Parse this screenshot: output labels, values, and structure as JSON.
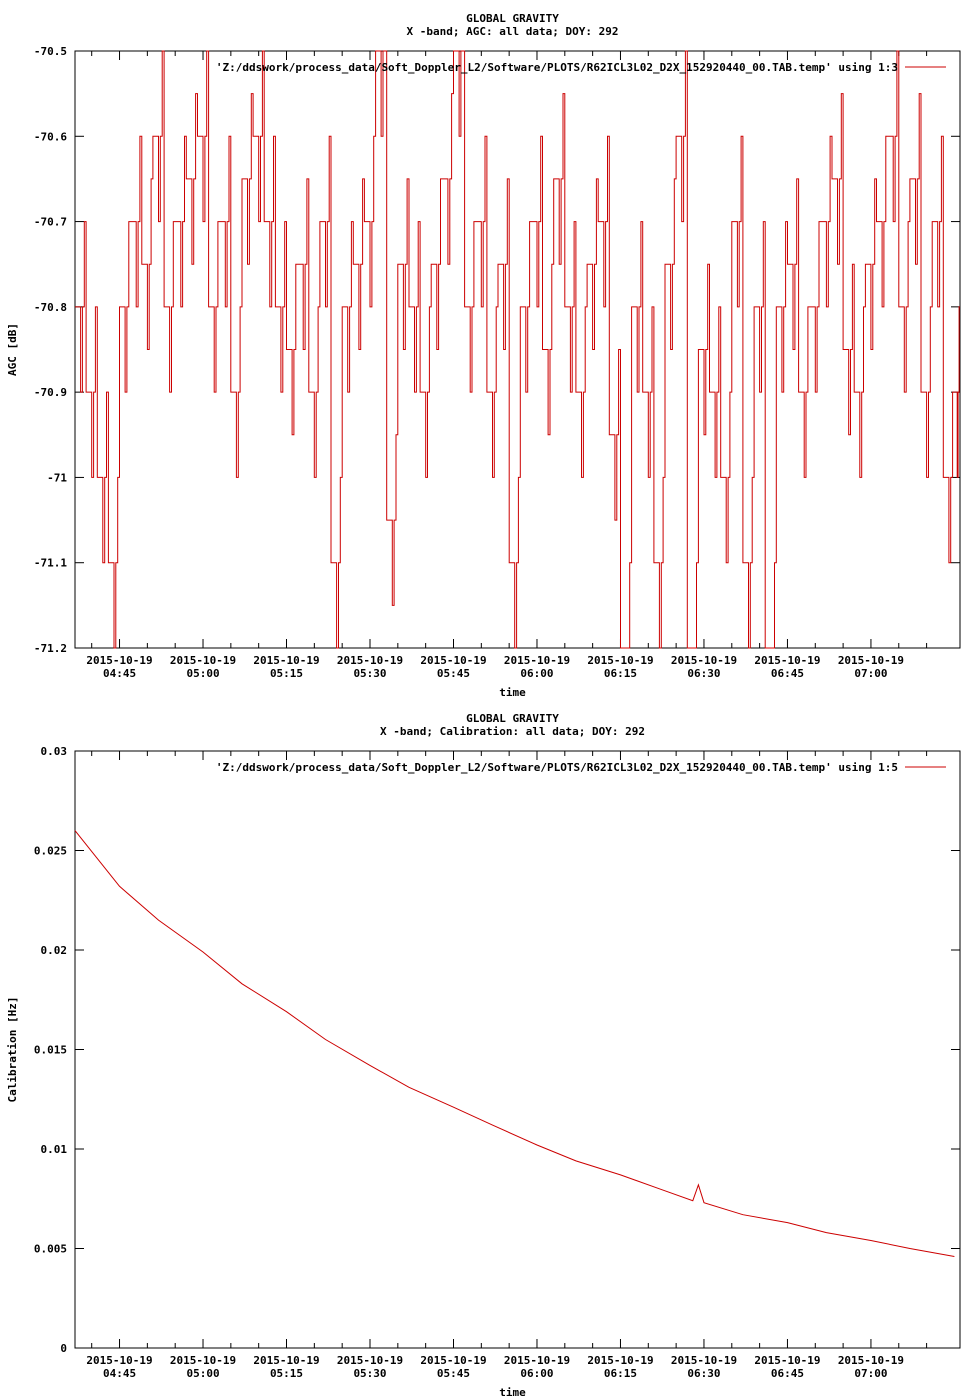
{
  "chart_data": [
    {
      "type": "line",
      "title": "GLOBAL GRAVITY",
      "subtitle": "X -band; AGC: all data; DOY: 292",
      "xlabel": "time",
      "ylabel": "AGC [dB]",
      "ylim": [
        -71.2,
        -70.5
      ],
      "yticks": [
        -70.5,
        -70.6,
        -70.7,
        -70.8,
        -70.9,
        -71,
        -71.1,
        -71.2
      ],
      "ytick_labels": [
        "-70.5",
        "-70.6",
        "-70.7",
        "-70.8",
        "-70.9",
        "-71",
        "-71.1",
        "-71.2"
      ],
      "xlim": [
        "04:37",
        "07:16"
      ],
      "xticks": [
        "04:45",
        "05:00",
        "05:15",
        "05:30",
        "05:45",
        "06:00",
        "06:15",
        "06:30",
        "06:45",
        "07:00"
      ],
      "xtick_date": "2015-10-19",
      "grid": false,
      "legend": "top-right",
      "series": [
        {
          "name": "'Z:/ddswork/process_data/Soft_Doppler_L2/Software/PLOTS/R62ICL3L02_D2X_152920440_00.TAB.temp' using 1:3",
          "color": "#cc0000",
          "x": [
            "04:37",
            "04:39",
            "04:41",
            "04:43",
            "04:45",
            "04:47",
            "04:49",
            "04:51",
            "04:53",
            "04:55",
            "04:57",
            "04:59",
            "05:01",
            "05:03",
            "05:05",
            "05:07",
            "05:09",
            "05:11",
            "05:13",
            "05:15",
            "05:17",
            "05:19",
            "05:21",
            "05:23",
            "05:25",
            "05:27",
            "05:29",
            "05:31",
            "05:33",
            "05:35",
            "05:37",
            "05:39",
            "05:41",
            "05:43",
            "05:45",
            "05:47",
            "05:49",
            "05:51",
            "05:53",
            "05:55",
            "05:57",
            "05:59",
            "06:01",
            "06:03",
            "06:05",
            "06:07",
            "06:09",
            "06:11",
            "06:13",
            "06:15",
            "06:17",
            "06:19",
            "06:21",
            "06:23",
            "06:25",
            "06:27",
            "06:29",
            "06:31",
            "06:33",
            "06:35",
            "06:37",
            "06:39",
            "06:41",
            "06:43",
            "06:45",
            "06:47",
            "06:49",
            "06:51",
            "06:53",
            "06:55",
            "06:57",
            "06:59",
            "07:01",
            "07:03",
            "07:05",
            "07:07",
            "07:09",
            "07:11",
            "07:13",
            "07:15"
          ],
          "values": [
            -70.8,
            -70.9,
            -71.0,
            -71.1,
            -70.8,
            -70.7,
            -70.75,
            -70.6,
            -70.8,
            -70.7,
            -70.65,
            -70.6,
            -70.8,
            -70.7,
            -70.9,
            -70.65,
            -70.6,
            -70.7,
            -70.8,
            -70.85,
            -70.75,
            -70.9,
            -70.7,
            -71.1,
            -70.8,
            -70.75,
            -70.7,
            -70.5,
            -71.05,
            -70.75,
            -70.8,
            -70.9,
            -70.75,
            -70.65,
            -70.5,
            -70.8,
            -70.7,
            -70.9,
            -70.75,
            -71.1,
            -70.8,
            -70.7,
            -70.85,
            -70.65,
            -70.8,
            -70.9,
            -70.75,
            -70.7,
            -70.95,
            -71.2,
            -70.8,
            -70.9,
            -71.1,
            -70.75,
            -70.6,
            -71.2,
            -70.85,
            -70.9,
            -71.0,
            -70.7,
            -71.1,
            -70.8,
            -71.2,
            -70.8,
            -70.75,
            -70.9,
            -70.8,
            -70.7,
            -70.65,
            -70.85,
            -70.9,
            -70.75,
            -70.7,
            -70.6,
            -70.8,
            -70.65,
            -70.9,
            -70.7,
            -71.0,
            -70.9
          ]
        }
      ]
    },
    {
      "type": "line",
      "title": "GLOBAL GRAVITY",
      "subtitle": "X -band; Calibration: all data; DOY: 292",
      "xlabel": "time",
      "ylabel": "Calibration [Hz]",
      "ylim": [
        0,
        0.03
      ],
      "yticks": [
        0.03,
        0.025,
        0.02,
        0.015,
        0.01,
        0.005,
        0
      ],
      "ytick_labels": [
        "0.03",
        "0.025",
        "0.02",
        "0.015",
        "0.01",
        "0.005",
        "0"
      ],
      "xlim": [
        "04:37",
        "07:16"
      ],
      "xticks": [
        "04:45",
        "05:00",
        "05:15",
        "05:30",
        "05:45",
        "06:00",
        "06:15",
        "06:30",
        "06:45",
        "07:00"
      ],
      "xtick_date": "2015-10-19",
      "grid": false,
      "legend": "top-right",
      "series": [
        {
          "name": "'Z:/ddswork/process_data/Soft_Doppler_L2/Software/PLOTS/R62ICL3L02_D2X_152920440_00.TAB.temp' using 1:5",
          "color": "#cc0000",
          "x": [
            "04:37",
            "04:45",
            "04:52",
            "05:00",
            "05:07",
            "05:15",
            "05:22",
            "05:30",
            "05:37",
            "05:45",
            "05:52",
            "06:00",
            "06:07",
            "06:15",
            "06:22",
            "06:28",
            "06:29",
            "06:30",
            "06:37",
            "06:45",
            "06:52",
            "07:00",
            "07:07",
            "07:15"
          ],
          "values": [
            0.026,
            0.0232,
            0.0215,
            0.0199,
            0.0183,
            0.0169,
            0.0155,
            0.0142,
            0.0131,
            0.0121,
            0.0112,
            0.0102,
            0.0094,
            0.0087,
            0.008,
            0.0074,
            0.0082,
            0.0073,
            0.0067,
            0.0063,
            0.0058,
            0.0054,
            0.005,
            0.0046
          ]
        }
      ]
    }
  ]
}
